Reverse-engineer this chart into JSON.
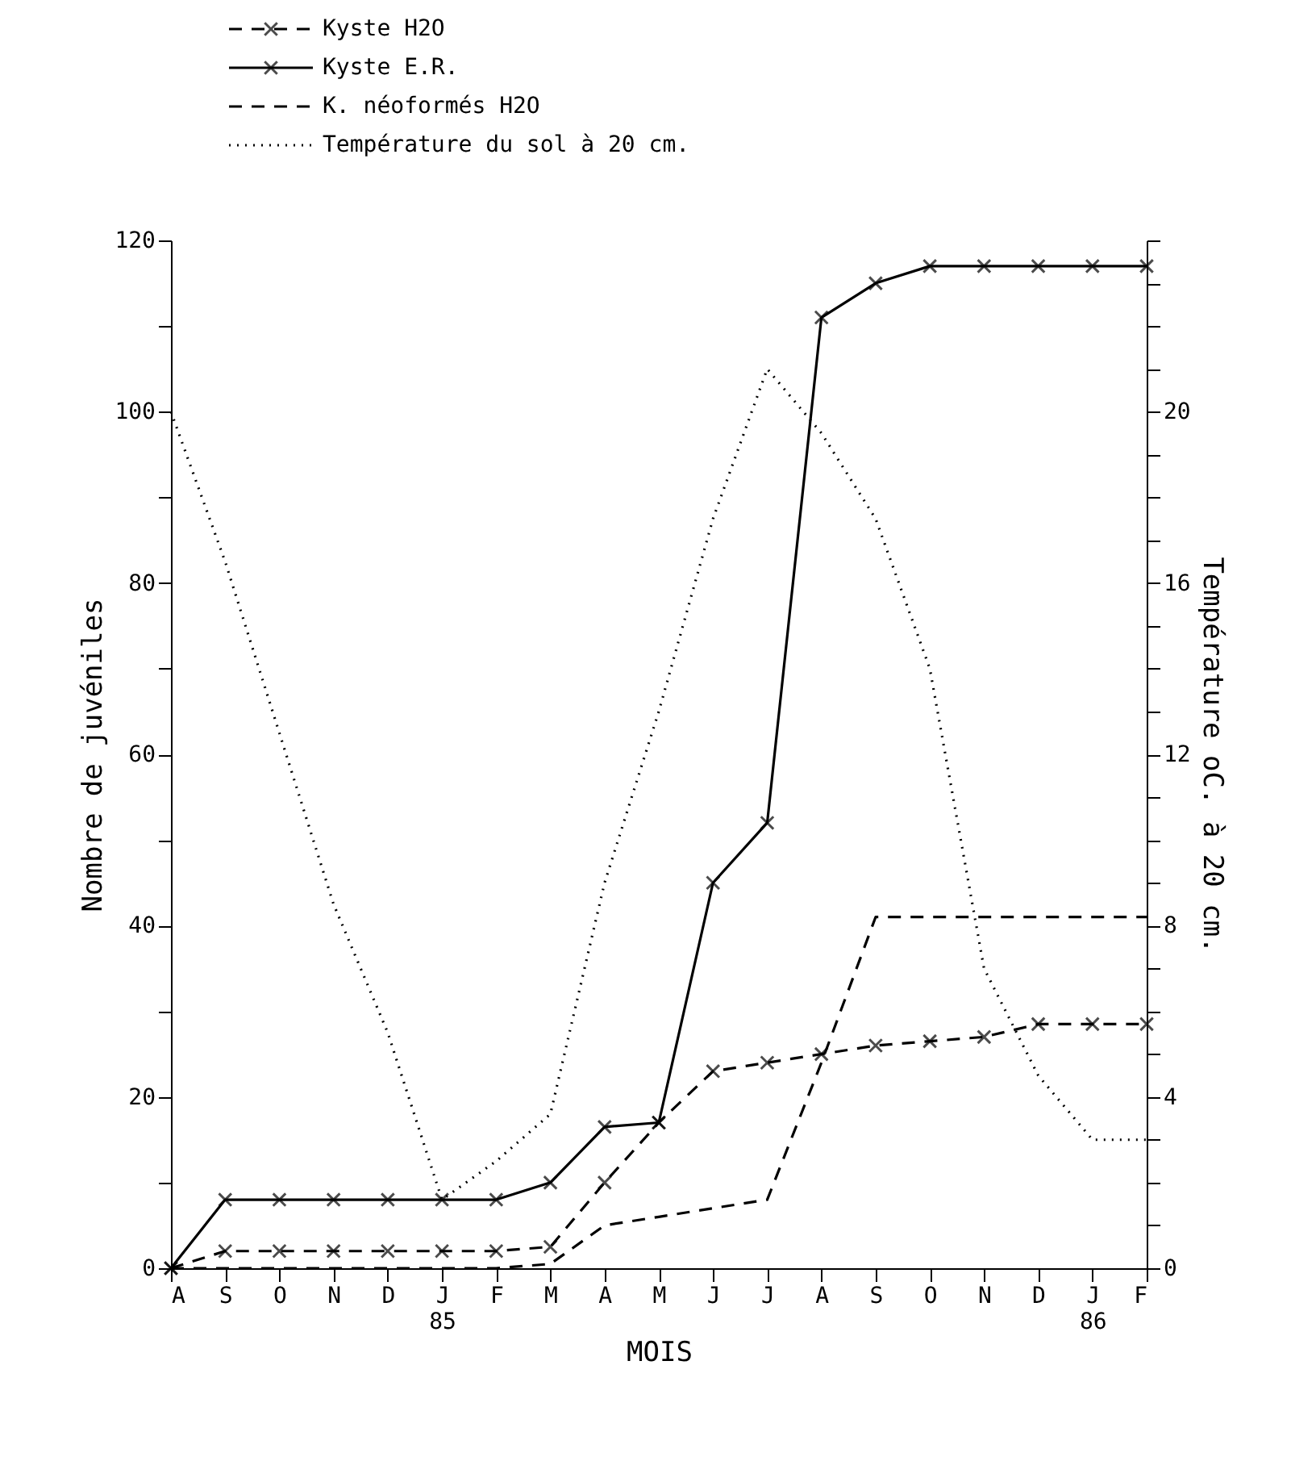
{
  "chart_data": {
    "type": "line",
    "xlabel": "MOIS",
    "ylabel": "Nombre de juvéniles",
    "y2label": "Température oC. à 20 cm.",
    "categories": [
      "A",
      "S",
      "O",
      "N",
      "D",
      "J\n85",
      "F",
      "M",
      "A",
      "M",
      "J",
      "J",
      "A",
      "S",
      "O",
      "N",
      "D",
      "J\n86",
      "F"
    ],
    "series": [
      {
        "name": "Kyste H2O",
        "color": "#000000",
        "line_style": "dashed",
        "marker": "cross",
        "values": [
          0,
          2,
          2,
          2,
          2,
          2,
          2,
          2.5,
          10,
          17,
          23,
          24,
          25,
          26,
          26.5,
          27,
          28.5,
          28.5,
          28.5
        ]
      },
      {
        "name": "Kyste E.R.",
        "color": "#000000",
        "line_style": "solid",
        "marker": "cross",
        "values": [
          0,
          8,
          8,
          8,
          8,
          8,
          8,
          10,
          16.5,
          17,
          45,
          52,
          111,
          115,
          117,
          117,
          117,
          117,
          117
        ]
      },
      {
        "name": "K. néoformés H2O",
        "color": "#000000",
        "line_style": "dashed",
        "marker": "none",
        "values": [
          0,
          0,
          0,
          0,
          0,
          0,
          0,
          0.5,
          5,
          6,
          7,
          8,
          24,
          41,
          41,
          41,
          41,
          41,
          41
        ]
      },
      {
        "name": "Température du sol à 20 cm.",
        "color": "#000000",
        "line_style": "dotted",
        "marker": "none",
        "axis": "y2",
        "values": [
          20,
          16.5,
          12.5,
          8.5,
          5.5,
          1.6,
          2.5,
          3.6,
          9,
          13,
          17.5,
          21,
          19.5,
          17.5,
          14,
          7,
          4.5,
          3,
          3
        ]
      }
    ],
    "ylim": [
      0,
      120
    ],
    "yticks": [
      0,
      {
        "value": 5,
        "label": null
      },
      {
        "value": 10,
        "label": null
      },
      {
        "value": 15,
        "label": null
      },
      20,
      {
        "value": 25,
        "label": null
      },
      {
        "value": 30,
        "label": null
      },
      {
        "value": 35,
        "label": null
      },
      40,
      {
        "value": 45,
        "label": null
      },
      {
        "value": 50,
        "label": null
      },
      {
        "value": 55,
        "label": null
      },
      60,
      {
        "value": 65,
        "label": null
      },
      {
        "value": 70,
        "label": null
      },
      {
        "value": 75,
        "label": null
      },
      80,
      {
        "value": 85,
        "label": null
      },
      {
        "value": 90,
        "label": null
      },
      {
        "value": 95,
        "label": null
      },
      100,
      {
        "value": 105,
        "label": null
      },
      {
        "value": 110,
        "label": null
      },
      {
        "value": 115,
        "label": null
      },
      120
    ],
    "y2lim": [
      0,
      24
    ],
    "y2ticks": [
      0,
      {
        "value": 1,
        "label": null
      },
      {
        "value": 2,
        "label": null
      },
      {
        "value": 3,
        "label": null
      },
      4,
      {
        "value": 5,
        "label": null
      },
      {
        "value": 6,
        "label": null
      },
      {
        "value": 7,
        "label": null
      },
      8,
      {
        "value": 9,
        "label": null
      },
      {
        "value": 10,
        "label": null
      },
      {
        "value": 11,
        "label": null
      },
      12,
      {
        "value": 13,
        "label": null
      },
      {
        "value": 14,
        "label": null
      },
      {
        "value": 15,
        "label": null
      },
      16,
      {
        "value": 17,
        "label": null
      },
      {
        "value": 18,
        "label": null
      },
      {
        "value": 19,
        "label": null
      },
      20,
      {
        "value": 21,
        "label": null
      },
      {
        "value": 22,
        "label": null
      },
      {
        "value": 23,
        "label": null
      },
      {
        "value": 24,
        "label": null
      }
    ],
    "legend": "top",
    "grid": false
  }
}
